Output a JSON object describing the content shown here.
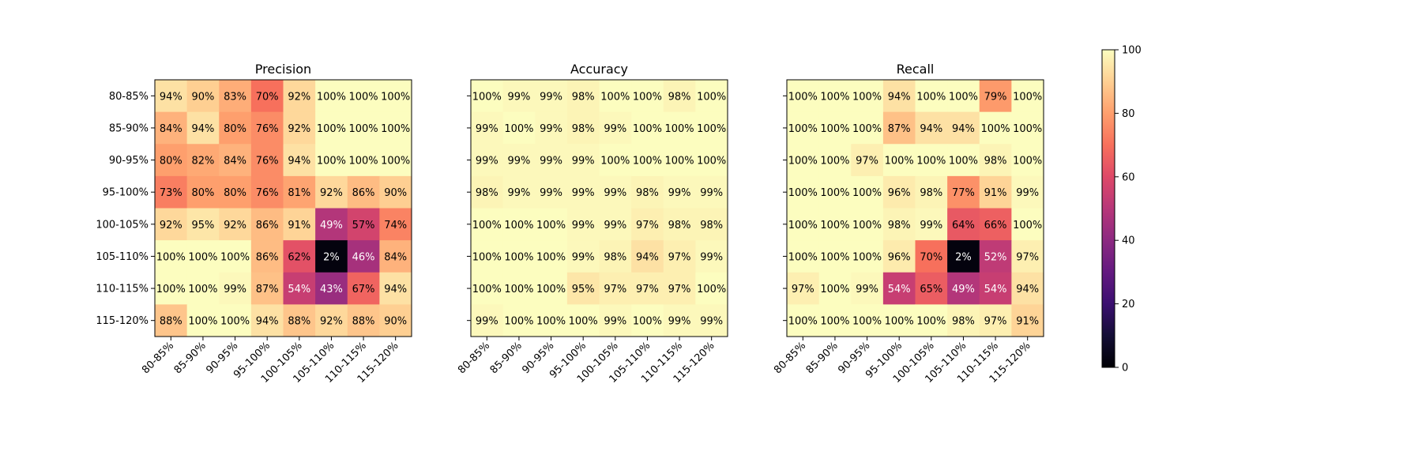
{
  "chart_data": [
    {
      "type": "heatmap",
      "title": "Precision",
      "xlabel": "",
      "ylabel": "",
      "categories": [
        "80-85%",
        "85-90%",
        "90-95%",
        "95-100%",
        "100-105%",
        "105-110%",
        "110-115%",
        "115-120%"
      ],
      "x_tick_labels": [
        "80-85%",
        "85-90%",
        "90-95%",
        "95-100%",
        "100-105%",
        "105-110%",
        "110-115%",
        "115-120%"
      ],
      "y_tick_labels": [
        "80-85%",
        "85-90%",
        "90-95%",
        "95-100%",
        "100-105%",
        "105-110%",
        "110-115%",
        "115-120%"
      ],
      "values": [
        [
          94,
          90,
          83,
          70,
          92,
          100,
          100,
          100
        ],
        [
          84,
          94,
          80,
          76,
          92,
          100,
          100,
          100
        ],
        [
          80,
          82,
          84,
          76,
          94,
          100,
          100,
          100
        ],
        [
          73,
          80,
          80,
          76,
          81,
          92,
          86,
          90
        ],
        [
          92,
          95,
          92,
          86,
          91,
          49,
          57,
          74
        ],
        [
          100,
          100,
          100,
          86,
          62,
          2,
          46,
          84
        ],
        [
          100,
          100,
          99,
          87,
          54,
          43,
          67,
          94
        ],
        [
          88,
          100,
          100,
          94,
          88,
          92,
          88,
          90
        ]
      ],
      "value_labels": [
        [
          "94%",
          "90%",
          "83%",
          "70%",
          "92%",
          "100%",
          "100%",
          "100%"
        ],
        [
          "84%",
          "94%",
          "80%",
          "76%",
          "92%",
          "100%",
          "100%",
          "100%"
        ],
        [
          "80%",
          "82%",
          "84%",
          "76%",
          "94%",
          "100%",
          "100%",
          "100%"
        ],
        [
          "73%",
          "80%",
          "80%",
          "76%",
          "81%",
          "92%",
          "86%",
          "90%"
        ],
        [
          "92%",
          "95%",
          "92%",
          "86%",
          "91%",
          "49%",
          "57%",
          "74%"
        ],
        [
          "100%",
          "100%",
          "100%",
          "86%",
          "62%",
          "2%",
          "46%",
          "84%"
        ],
        [
          "100%",
          "100%",
          "99%",
          "87%",
          "54%",
          "43%",
          "67%",
          "94%"
        ],
        [
          "88%",
          "100%",
          "100%",
          "94%",
          "88%",
          "92%",
          "88%",
          "90%"
        ]
      ]
    },
    {
      "type": "heatmap",
      "title": "Accuracy",
      "xlabel": "",
      "ylabel": "",
      "categories": [
        "80-85%",
        "85-90%",
        "90-95%",
        "95-100%",
        "100-105%",
        "105-110%",
        "110-115%",
        "115-120%"
      ],
      "x_tick_labels": [
        "80-85%",
        "85-90%",
        "90-95%",
        "95-100%",
        "100-105%",
        "105-110%",
        "110-115%",
        "115-120%"
      ],
      "y_tick_labels": [],
      "values": [
        [
          100,
          99,
          99,
          98,
          100,
          100,
          98,
          100
        ],
        [
          99,
          100,
          99,
          98,
          99,
          100,
          100,
          100
        ],
        [
          99,
          99,
          99,
          99,
          100,
          100,
          100,
          100
        ],
        [
          98,
          99,
          99,
          99,
          99,
          98,
          99,
          99
        ],
        [
          100,
          100,
          100,
          99,
          99,
          97,
          98,
          98
        ],
        [
          100,
          100,
          100,
          99,
          98,
          94,
          97,
          99
        ],
        [
          100,
          100,
          100,
          95,
          97,
          97,
          97,
          100
        ],
        [
          99,
          100,
          100,
          100,
          99,
          100,
          99,
          99
        ]
      ],
      "value_labels": [
        [
          "100%",
          "99%",
          "99%",
          "98%",
          "100%",
          "100%",
          "98%",
          "100%"
        ],
        [
          "99%",
          "100%",
          "99%",
          "98%",
          "99%",
          "100%",
          "100%",
          "100%"
        ],
        [
          "99%",
          "99%",
          "99%",
          "99%",
          "100%",
          "100%",
          "100%",
          "100%"
        ],
        [
          "98%",
          "99%",
          "99%",
          "99%",
          "99%",
          "98%",
          "99%",
          "99%"
        ],
        [
          "100%",
          "100%",
          "100%",
          "99%",
          "99%",
          "97%",
          "98%",
          "98%"
        ],
        [
          "100%",
          "100%",
          "100%",
          "99%",
          "98%",
          "94%",
          "97%",
          "99%"
        ],
        [
          "100%",
          "100%",
          "100%",
          "95%",
          "97%",
          "97%",
          "97%",
          "100%"
        ],
        [
          "99%",
          "100%",
          "100%",
          "100%",
          "99%",
          "100%",
          "99%",
          "99%"
        ]
      ]
    },
    {
      "type": "heatmap",
      "title": "Recall",
      "xlabel": "",
      "ylabel": "",
      "categories": [
        "80-85%",
        "85-90%",
        "90-95%",
        "95-100%",
        "100-105%",
        "105-110%",
        "110-115%",
        "115-120%"
      ],
      "x_tick_labels": [
        "80-85%",
        "85-90%",
        "90-95%",
        "95-100%",
        "100-105%",
        "105-110%",
        "110-115%",
        "115-120%"
      ],
      "y_tick_labels": [],
      "values": [
        [
          100,
          100,
          100,
          94,
          100,
          100,
          79,
          100
        ],
        [
          100,
          100,
          100,
          87,
          94,
          94,
          100,
          100
        ],
        [
          100,
          100,
          97,
          100,
          100,
          100,
          98,
          100
        ],
        [
          100,
          100,
          100,
          96,
          98,
          77,
          91,
          99
        ],
        [
          100,
          100,
          100,
          98,
          99,
          64,
          66,
          100
        ],
        [
          100,
          100,
          100,
          96,
          70,
          2,
          52,
          97
        ],
        [
          97,
          100,
          99,
          54,
          65,
          49,
          54,
          94
        ],
        [
          100,
          100,
          100,
          100,
          100,
          98,
          97,
          91
        ]
      ],
      "value_labels": [
        [
          "100%",
          "100%",
          "100%",
          "94%",
          "100%",
          "100%",
          "79%",
          "100%"
        ],
        [
          "100%",
          "100%",
          "100%",
          "87%",
          "94%",
          "94%",
          "100%",
          "100%"
        ],
        [
          "100%",
          "100%",
          "97%",
          "100%",
          "100%",
          "100%",
          "98%",
          "100%"
        ],
        [
          "100%",
          "100%",
          "100%",
          "96%",
          "98%",
          "77%",
          "91%",
          "99%"
        ],
        [
          "100%",
          "100%",
          "100%",
          "98%",
          "99%",
          "64%",
          "66%",
          "100%"
        ],
        [
          "100%",
          "100%",
          "100%",
          "96%",
          "70%",
          "2%",
          "52%",
          "97%"
        ],
        [
          "97%",
          "100%",
          "99%",
          "54%",
          "65%",
          "49%",
          "54%",
          "94%"
        ],
        [
          "100%",
          "100%",
          "100%",
          "100%",
          "100%",
          "98%",
          "97%",
          "91%"
        ]
      ]
    }
  ],
  "colorbar": {
    "colormap": "magma",
    "range": [
      0,
      100
    ],
    "ticks": [
      0,
      20,
      40,
      60,
      80,
      100
    ],
    "tick_labels": [
      "0",
      "20",
      "40",
      "60",
      "80",
      "100"
    ]
  }
}
